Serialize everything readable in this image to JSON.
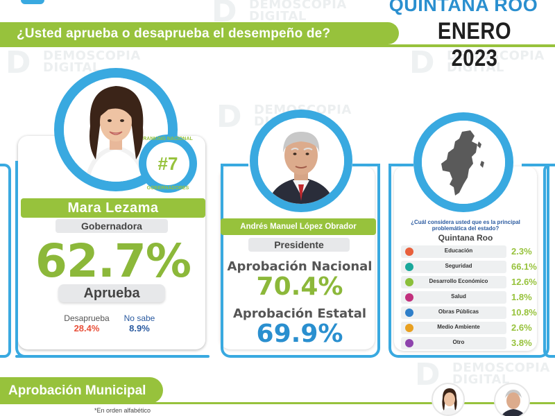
{
  "header": {
    "state": "QUINTANA ROO",
    "month": "ENERO 2023",
    "question": "¿Usted aprueba o desaprueba el desempeño de?"
  },
  "watermark": {
    "line1": "DEMOSCOPIA",
    "line2": "DIGITAL"
  },
  "governor": {
    "name": "Mara Lezama",
    "role": "Gobernadora",
    "approval": "62.7%",
    "approval_label": "Aprueba",
    "disapprove_label": "Desaprueba",
    "disapprove_value": "28.4%",
    "dont_know_label": "No sabe",
    "dont_know_value": "8.9%",
    "badge_top": "RANKING NACIONAL",
    "badge_rank": "#7",
    "badge_bottom": "GOBERNADORES"
  },
  "president": {
    "name": "Andrés Manuel López Obrador",
    "role": "Presidente",
    "national_label": "Aprobación Nacional",
    "national_value": "70.4%",
    "state_label": "Aprobación Estatal",
    "state_value": "69.9%"
  },
  "issues": {
    "question": "¿Cuál considera usted que es la principal problemática del estado?",
    "state_label": "Quintana Roo",
    "items": [
      {
        "label": "Educación",
        "value": "2.3%",
        "color": "#e8603c"
      },
      {
        "label": "Seguridad",
        "value": "66.1%",
        "color": "#1aa89b"
      },
      {
        "label": "Desarrollo Económico",
        "value": "12.6%",
        "color": "#8bbf3a"
      },
      {
        "label": "Salud",
        "value": "1.8%",
        "color": "#c2317d"
      },
      {
        "label": "Obras Públicas",
        "value": "10.8%",
        "color": "#2f7fc9"
      },
      {
        "label": "Medio Ambiente",
        "value": "2.6%",
        "color": "#e8a021"
      },
      {
        "label": "Otro",
        "value": "3.8%",
        "color": "#8e44ad"
      }
    ]
  },
  "municipal": {
    "title": "Aprobación Municipal",
    "note": "*En orden alfabético"
  },
  "colors": {
    "blue": "#39a9e0",
    "green": "#97c23c",
    "red": "#e8503a",
    "dark": "#1f1f1f"
  }
}
